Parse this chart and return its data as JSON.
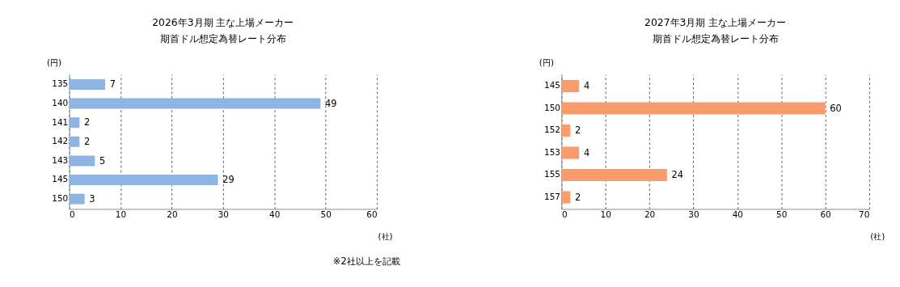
{
  "chart_data": [
    {
      "type": "bar",
      "orientation": "horizontal",
      "title": "2026年3月期  主な上場メーカー",
      "subtitle": "期首ドル想定為替レート分布",
      "ylabel": "(円)",
      "xlabel": "(社)",
      "categories": [
        "135",
        "140",
        "141",
        "142",
        "143",
        "145",
        "150"
      ],
      "values": [
        7,
        49,
        2,
        2,
        5,
        29,
        3
      ],
      "color": "#8eb4e3",
      "xlim": [
        0,
        60
      ],
      "xticks": [
        0,
        10,
        20,
        30,
        40,
        50,
        60
      ],
      "grid": "x",
      "data_labels": true,
      "annotations": [
        "※2社以上を記載"
      ]
    },
    {
      "type": "bar",
      "orientation": "horizontal",
      "title": "2027年3月期  主な上場メーカー",
      "subtitle": "期首ドル想定為替レート分布",
      "ylabel": "(円)",
      "xlabel": "(社)",
      "categories": [
        "145",
        "150",
        "152",
        "153",
        "155",
        "157"
      ],
      "values": [
        4,
        60,
        2,
        4,
        24,
        2
      ],
      "color": "#fa9b6b",
      "xlim": [
        0,
        70
      ],
      "xticks": [
        0,
        10,
        20,
        30,
        40,
        50,
        60,
        70
      ],
      "grid": "x",
      "data_labels": true
    }
  ]
}
